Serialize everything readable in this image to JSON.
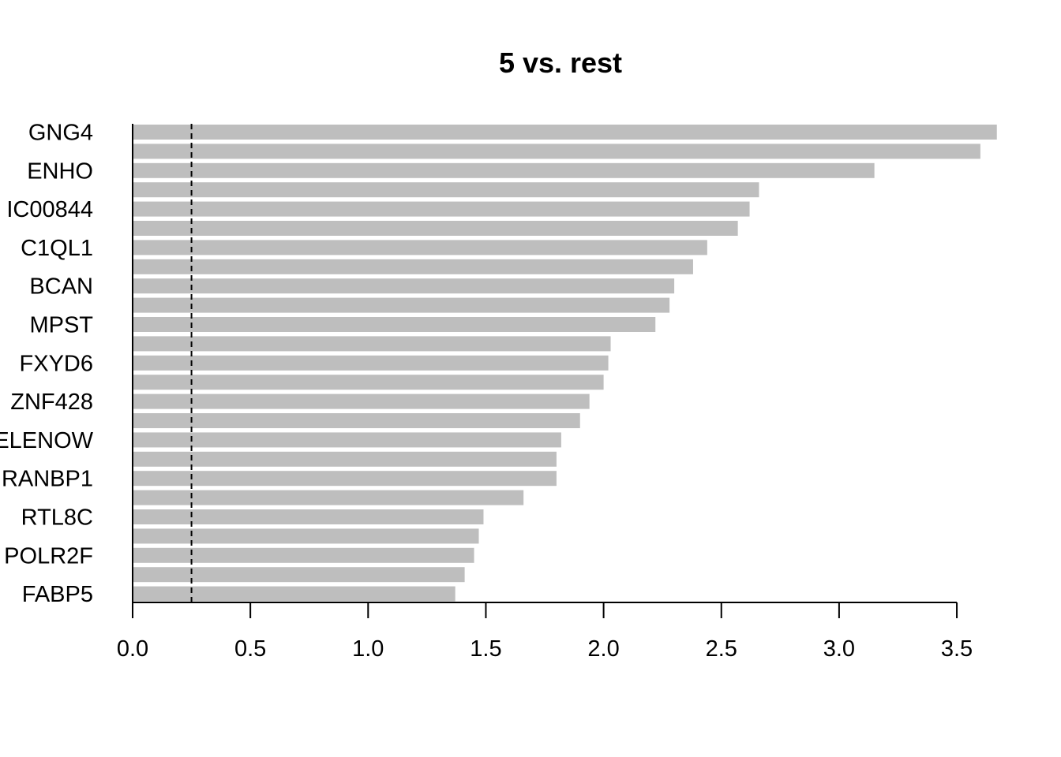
{
  "chart_data": {
    "type": "bar",
    "orientation": "horizontal",
    "title": "5 vs. rest",
    "xlabel": "",
    "ylabel": "",
    "categories": [
      "GNG4",
      "",
      "ENHO",
      "",
      "IC00844",
      "",
      "C1QL1",
      "",
      "BCAN",
      "",
      "MPST",
      "",
      "FXYD6",
      "",
      "ZNF428",
      "",
      "ELENOW",
      "",
      "RANBP1",
      "",
      "RTL8C",
      "",
      "POLR2F",
      "",
      "FABP5"
    ],
    "values": [
      3.67,
      3.6,
      3.15,
      2.66,
      2.62,
      2.57,
      2.44,
      2.38,
      2.3,
      2.28,
      2.22,
      2.03,
      2.02,
      2.0,
      1.94,
      1.9,
      1.82,
      1.8,
      1.8,
      1.66,
      1.49,
      1.47,
      1.45,
      1.41,
      1.37
    ],
    "xlim": [
      0,
      3.5
    ],
    "xticks": [
      "0.0",
      "0.5",
      "1.0",
      "1.5",
      "2.0",
      "2.5",
      "3.0",
      "3.5"
    ],
    "reference_line": 0.25,
    "bar_color": "#bebebe",
    "grid": false,
    "legend": "none"
  }
}
